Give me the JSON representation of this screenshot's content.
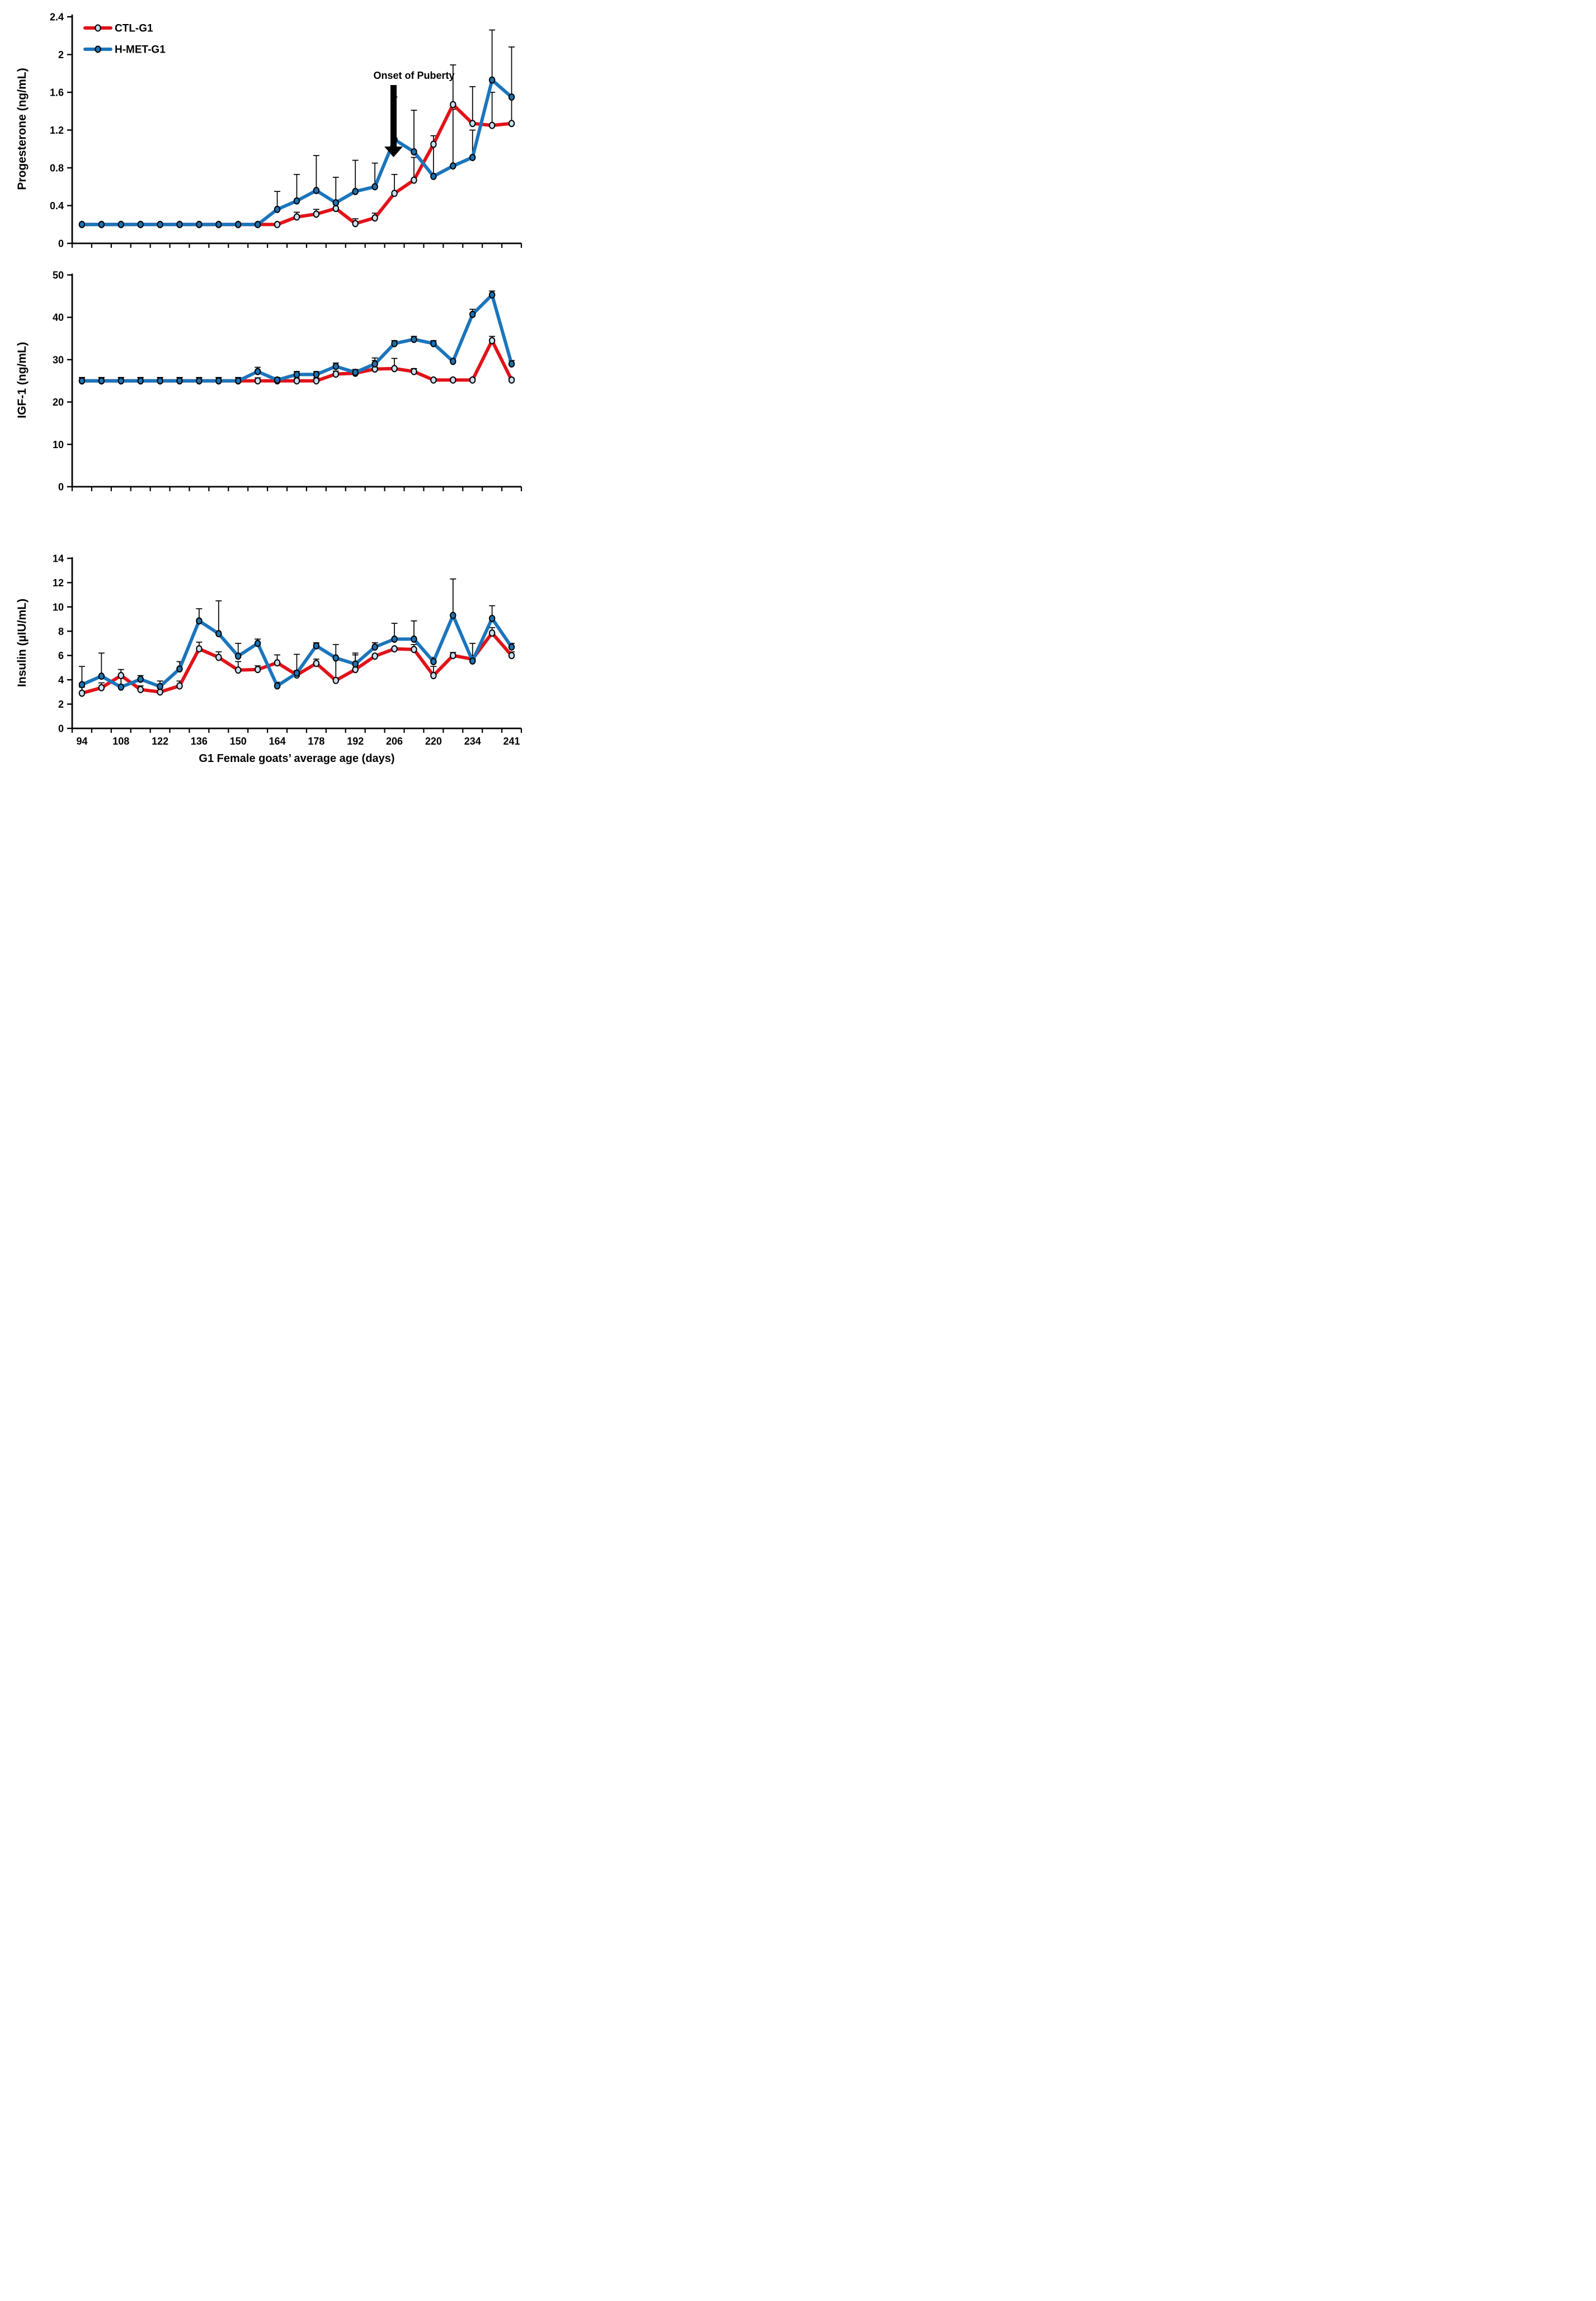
{
  "figure": {
    "x_axis": {
      "label": "G1 Female goats’ average age (days)",
      "tick_labels": [
        "94",
        "108",
        "122",
        "136",
        "150",
        "164",
        "178",
        "192",
        "206",
        "220",
        "234",
        "241"
      ],
      "note": "23 weekly sample points; labels shown under every other point"
    },
    "legend": [
      {
        "label": "CTL-G1"
      },
      {
        "label": "H-MET-G1"
      }
    ],
    "annotation": {
      "text": "Onset of Puberty"
    },
    "colors": {
      "ctl_line": "#E11219",
      "ctl_marker_fill": "#C9DFF1",
      "hmet_line": "#1B75BC",
      "hmet_marker_fill": "#1E72B0",
      "marker_outline": "#000000",
      "axis": "#000000",
      "error_bar": "#000000",
      "arrow": "#000000"
    }
  },
  "chart_data": [
    {
      "type": "line",
      "ylabel": "Progesterone (ng/mL)",
      "ylim": [
        0,
        2.4
      ],
      "ytick_labels": [
        "0",
        "0.4",
        "0.8",
        "1.2",
        "1.6",
        "2",
        "2.4"
      ],
      "ytick_values": [
        0,
        0.4,
        0.8,
        1.2,
        1.6,
        2,
        2.4
      ],
      "n_points": 23,
      "series": [
        {
          "name": "CTL-G1",
          "values": [
            0.2,
            0.2,
            0.2,
            0.2,
            0.2,
            0.2,
            0.2,
            0.2,
            0.2,
            0.2,
            0.2,
            0.28,
            0.31,
            0.37,
            0.21,
            0.27,
            0.53,
            0.67,
            1.05,
            1.47,
            1.27,
            1.25,
            1.27
          ],
          "upper_errors": [
            0,
            0,
            0,
            0,
            0,
            0,
            0,
            0,
            0,
            0,
            0,
            0.05,
            0.05,
            0.08,
            0.05,
            0.05,
            0.2,
            0.24,
            0,
            0.42,
            0.39,
            0.35,
            0.28
          ]
        },
        {
          "name": "H-MET-G1",
          "values": [
            0.2,
            0.2,
            0.2,
            0.2,
            0.2,
            0.2,
            0.2,
            0.2,
            0.2,
            0.2,
            0.36,
            0.45,
            0.56,
            0.43,
            0.55,
            0.6,
            1.1,
            0.97,
            0.71,
            0.82,
            0.91,
            1.73,
            1.55
          ],
          "upper_errors": [
            0,
            0,
            0,
            0,
            0,
            0,
            0,
            0,
            0,
            0,
            0.19,
            0.28,
            0.37,
            0.27,
            0.33,
            0.25,
            0.45,
            0.44,
            0.43,
            0.6,
            0.29,
            0.53,
            0.53
          ]
        }
      ],
      "annotation": "Onset of Puberty (arrow pointing down between days 199 and 206)"
    },
    {
      "type": "line",
      "ylabel": "IGF-1 (ng/mL)",
      "ylim": [
        0,
        50
      ],
      "ytick_labels": [
        "0",
        "10",
        "20",
        "30",
        "40",
        "50"
      ],
      "ytick_values": [
        0,
        10,
        20,
        30,
        40,
        50
      ],
      "n_points": 23,
      "series": [
        {
          "name": "CTL-G1",
          "values": [
            25,
            25,
            25,
            25,
            25,
            25,
            25,
            25,
            25,
            25,
            25,
            25,
            25,
            26.6,
            26.8,
            27.8,
            27.9,
            27.2,
            25.2,
            25.2,
            25.2,
            34.5,
            25.2
          ],
          "upper_errors": [
            0.7,
            0.7,
            0.7,
            0.7,
            0.7,
            0.7,
            0.7,
            0.7,
            0.7,
            0.7,
            0.7,
            0.7,
            0.7,
            0.7,
            0.7,
            2.6,
            2.4,
            0.7,
            0.4,
            0.4,
            0.4,
            1.0,
            0.4
          ]
        },
        {
          "name": "H-MET-G1",
          "values": [
            25,
            25,
            25,
            25,
            25,
            25,
            25,
            25,
            25,
            27.2,
            25.2,
            26.5,
            26.5,
            28.4,
            27.0,
            29.0,
            33.8,
            34.8,
            33.8,
            29.6,
            40.7,
            45.3,
            29.0
          ],
          "upper_errors": [
            0.8,
            0.8,
            0.8,
            0.8,
            0.8,
            0.8,
            0.8,
            0.8,
            0.8,
            1.0,
            0.6,
            0.7,
            0.7,
            0.8,
            0.7,
            0.8,
            0.7,
            0.7,
            0.7,
            0.7,
            1.2,
            0.9,
            0.8
          ]
        }
      ]
    },
    {
      "type": "line",
      "ylabel": "Insulin (µIU/mL)",
      "ylim": [
        0,
        14
      ],
      "ytick_labels": [
        "0",
        "2",
        "4",
        "6",
        "8",
        "10",
        "12",
        "14"
      ],
      "ytick_values": [
        0,
        2,
        4,
        6,
        8,
        10,
        12,
        14
      ],
      "n_points": 23,
      "series": [
        {
          "name": "CTL-G1",
          "values": [
            2.9,
            3.35,
            4.35,
            3.2,
            3.0,
            3.5,
            6.55,
            5.85,
            4.8,
            4.85,
            5.4,
            4.4,
            5.35,
            3.95,
            4.85,
            5.95,
            6.55,
            6.5,
            4.35,
            6.0,
            5.7,
            7.85,
            6.0
          ],
          "upper_errors": [
            0.5,
            0.4,
            0.5,
            0.3,
            0.3,
            0.4,
            0.55,
            0.45,
            0.7,
            0.3,
            0.65,
            0.35,
            0.35,
            1.8,
            1.2,
            0.15,
            0.1,
            0.4,
            0.75,
            0.25,
            0.3,
            0.45,
            0.3
          ]
        },
        {
          "name": "H-MET-G1",
          "values": [
            3.6,
            4.3,
            3.4,
            4.05,
            3.45,
            4.9,
            8.85,
            7.8,
            5.95,
            7.0,
            3.5,
            4.55,
            6.8,
            5.8,
            5.3,
            6.7,
            7.35,
            7.35,
            5.5,
            9.3,
            5.55,
            9.05,
            6.7
          ],
          "upper_errors": [
            1.5,
            1.9,
            0.75,
            0.3,
            0.45,
            0.6,
            1.0,
            2.7,
            1.05,
            0.35,
            0.3,
            1.55,
            0.25,
            1.1,
            0.9,
            0.35,
            1.3,
            1.5,
            0.35,
            3.0,
            1.45,
            1.05,
            0.3
          ]
        }
      ]
    }
  ]
}
